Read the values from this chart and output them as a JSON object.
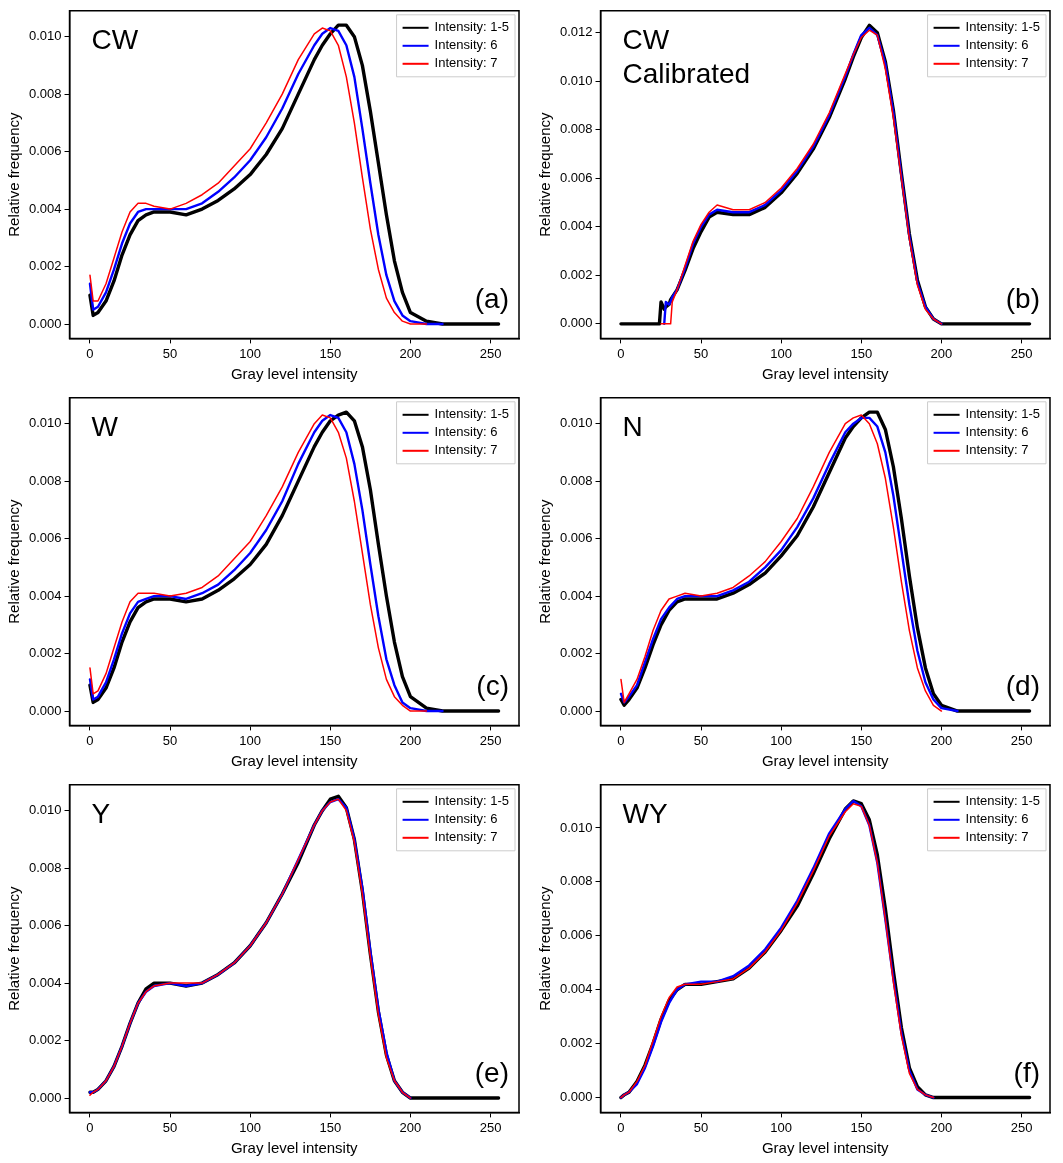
{
  "chart_data": [
    {
      "type": "line",
      "xlabel": "Gray level intensity",
      "ylabel": "Relative frequency",
      "annotations": [
        "CW",
        "(a)"
      ],
      "legend": "top right",
      "xlim": [
        -12.75,
        267.75
      ],
      "ylim": [
        -0.0005,
        0.0109
      ],
      "xticks": [
        0,
        50,
        100,
        150,
        200,
        250
      ],
      "yticks": [
        {
          "value": 0,
          "label": "0.000"
        },
        {
          "value": 0.002,
          "label": "0.002"
        },
        {
          "value": 0.004,
          "label": "0.004"
        },
        {
          "value": 0.006,
          "label": "0.006"
        },
        {
          "value": 0.008,
          "label": "0.008"
        },
        {
          "value": 0.01,
          "label": "0.010"
        }
      ],
      "x": [
        0,
        2,
        5,
        10,
        15,
        20,
        25,
        30,
        35,
        40,
        50,
        60,
        70,
        80,
        90,
        100,
        110,
        120,
        130,
        140,
        145,
        150,
        155,
        160,
        165,
        170,
        175,
        180,
        185,
        190,
        195,
        200,
        210,
        220,
        230,
        255
      ],
      "series": [
        {
          "name": "Intensity: 1-5",
          "color": "#000000",
          "values": [
            0.001,
            0.0003,
            0.0004,
            0.0008,
            0.0015,
            0.0024,
            0.0031,
            0.0036,
            0.0038,
            0.0039,
            0.0039,
            0.0038,
            0.004,
            0.0043,
            0.0047,
            0.0052,
            0.0059,
            0.0068,
            0.008,
            0.0092,
            0.0097,
            0.0101,
            0.0104,
            0.0104,
            0.01,
            0.009,
            0.0074,
            0.0056,
            0.0038,
            0.0022,
            0.0011,
            0.0004,
            0.0001,
            0,
            0,
            0
          ]
        },
        {
          "name": "Intensity: 6",
          "color": "#0000ff",
          "values": [
            0.0014,
            0.0005,
            0.0006,
            0.0011,
            0.0019,
            0.0028,
            0.0035,
            0.0039,
            0.004,
            0.004,
            0.004,
            0.004,
            0.0042,
            0.0046,
            0.0051,
            0.0057,
            0.0065,
            0.0075,
            0.0087,
            0.0097,
            0.0101,
            0.0103,
            0.0102,
            0.0097,
            0.0086,
            0.0068,
            0.0049,
            0.0031,
            0.0017,
            0.0008,
            0.0003,
            0.0001,
            0,
            0,
            null,
            null
          ]
        },
        {
          "name": "Intensity: 7",
          "color": "#ff0000",
          "values": [
            0.0017,
            0.0008,
            0.0008,
            0.0014,
            0.0023,
            0.0032,
            0.0039,
            0.0042,
            0.0042,
            0.0041,
            0.004,
            0.0042,
            0.0045,
            0.0049,
            0.0055,
            0.0061,
            0.007,
            0.008,
            0.0092,
            0.0101,
            0.0103,
            0.0102,
            0.0097,
            0.0086,
            0.007,
            0.0051,
            0.0033,
            0.0019,
            0.0009,
            0.0004,
            0.0001,
            0,
            0,
            null,
            null,
            null
          ]
        }
      ]
    },
    {
      "type": "line",
      "xlabel": "Gray level intensity",
      "ylabel": "Relative frequency",
      "annotations": [
        "CW Calibrated",
        "(b)"
      ],
      "legend": "top right",
      "xlim": [
        -12.75,
        267.75
      ],
      "ylim": [
        -0.0006,
        0.0129
      ],
      "xticks": [
        0,
        50,
        100,
        150,
        200,
        250
      ],
      "yticks": [
        {
          "value": 0,
          "label": "0.000"
        },
        {
          "value": 0.002,
          "label": "0.002"
        },
        {
          "value": 0.004,
          "label": "0.004"
        },
        {
          "value": 0.006,
          "label": "0.006"
        },
        {
          "value": 0.008,
          "label": "0.008"
        },
        {
          "value": 0.01,
          "label": "0.010"
        },
        {
          "value": 0.012,
          "label": "0.012"
        }
      ],
      "x": [
        0,
        10,
        20,
        24,
        25,
        27,
        28,
        30,
        31,
        32,
        35,
        40,
        45,
        50,
        55,
        60,
        70,
        80,
        90,
        100,
        110,
        120,
        130,
        140,
        145,
        150,
        155,
        160,
        165,
        170,
        175,
        180,
        185,
        190,
        195,
        200,
        210,
        230,
        255
      ],
      "series": [
        {
          "name": "Intensity: 1-5",
          "color": "#000000",
          "values": [
            0,
            0,
            0,
            0,
            0.0009,
            0.0006,
            0.0007,
            0.0008,
            0.001,
            0.0011,
            0.0014,
            0.0022,
            0.0031,
            0.0038,
            0.0044,
            0.0046,
            0.0045,
            0.0045,
            0.0048,
            0.0054,
            0.0062,
            0.0072,
            0.0085,
            0.0101,
            0.011,
            0.0118,
            0.0123,
            0.012,
            0.0108,
            0.0088,
            0.0062,
            0.0037,
            0.0018,
            0.0007,
            0.0002,
            0,
            0,
            0,
            0
          ]
        },
        {
          "name": "Intensity: 6",
          "color": "#0000ff",
          "values": [
            null,
            null,
            null,
            null,
            null,
            0,
            0.0009,
            0.0008,
            0.0009,
            0.0011,
            0.0014,
            0.0023,
            0.0033,
            0.004,
            0.0045,
            0.0047,
            0.0046,
            0.0046,
            0.0049,
            0.0055,
            0.0063,
            0.0073,
            0.0086,
            0.0102,
            0.0111,
            0.0119,
            0.0122,
            0.0119,
            0.0107,
            0.0087,
            0.0061,
            0.0036,
            0.0017,
            0.0007,
            0.0002,
            0,
            null,
            null,
            null
          ]
        },
        {
          "name": "Intensity: 7",
          "color": "#ff0000",
          "values": [
            null,
            null,
            null,
            null,
            0,
            0,
            0,
            0,
            0,
            0.0009,
            0.0014,
            0.0024,
            0.0034,
            0.0041,
            0.0046,
            0.0049,
            0.0047,
            0.0047,
            0.005,
            0.0056,
            0.0064,
            0.0074,
            0.0087,
            0.0103,
            0.0111,
            0.0118,
            0.0121,
            0.0119,
            0.0105,
            0.0085,
            0.006,
            0.0035,
            0.0016,
            0.0006,
            0.0002,
            0,
            null,
            null,
            null
          ]
        }
      ]
    },
    {
      "type": "line",
      "xlabel": "Gray level intensity",
      "ylabel": "Relative frequency",
      "annotations": [
        "W",
        "(c)"
      ],
      "legend": "top right",
      "xlim": [
        -12.75,
        267.75
      ],
      "ylim": [
        -0.0005,
        0.0109
      ],
      "xticks": [
        0,
        50,
        100,
        150,
        200,
        250
      ],
      "yticks": [
        {
          "value": 0,
          "label": "0.000"
        },
        {
          "value": 0.002,
          "label": "0.002"
        },
        {
          "value": 0.004,
          "label": "0.004"
        },
        {
          "value": 0.006,
          "label": "0.006"
        },
        {
          "value": 0.008,
          "label": "0.008"
        },
        {
          "value": 0.01,
          "label": "0.010"
        }
      ],
      "x": [
        0,
        2,
        5,
        10,
        15,
        20,
        25,
        30,
        35,
        40,
        50,
        60,
        70,
        80,
        90,
        100,
        110,
        120,
        130,
        140,
        145,
        150,
        155,
        160,
        165,
        170,
        175,
        180,
        185,
        190,
        195,
        200,
        210,
        220,
        230,
        255
      ],
      "series": [
        {
          "name": "Intensity: 1-5",
          "color": "#000000",
          "values": [
            0.0009,
            0.0003,
            0.0004,
            0.0008,
            0.0015,
            0.0024,
            0.0031,
            0.0036,
            0.0038,
            0.0039,
            0.0039,
            0.0038,
            0.0039,
            0.0042,
            0.0046,
            0.0051,
            0.0058,
            0.0068,
            0.008,
            0.0092,
            0.0097,
            0.0101,
            0.0103,
            0.0104,
            0.0101,
            0.0092,
            0.0077,
            0.0058,
            0.004,
            0.0024,
            0.0012,
            0.0005,
            0.0001,
            0,
            0,
            0
          ]
        },
        {
          "name": "Intensity: 6",
          "color": "#0000ff",
          "values": [
            0.0011,
            0.0004,
            0.0005,
            0.001,
            0.0018,
            0.0027,
            0.0034,
            0.0038,
            0.0039,
            0.004,
            0.004,
            0.0039,
            0.0041,
            0.0044,
            0.0049,
            0.0055,
            0.0063,
            0.0073,
            0.0086,
            0.0097,
            0.0101,
            0.0103,
            0.0102,
            0.0097,
            0.0086,
            0.007,
            0.0051,
            0.0033,
            0.0018,
            0.0009,
            0.0003,
            0.0001,
            0,
            0,
            null,
            null
          ]
        },
        {
          "name": "Intensity: 7",
          "color": "#ff0000",
          "values": [
            0.0015,
            0.0006,
            0.0007,
            0.0013,
            0.0022,
            0.0031,
            0.0038,
            0.0041,
            0.0041,
            0.0041,
            0.004,
            0.0041,
            0.0043,
            0.0047,
            0.0053,
            0.0059,
            0.0068,
            0.0078,
            0.009,
            0.01,
            0.0103,
            0.0102,
            0.0097,
            0.0088,
            0.0073,
            0.0055,
            0.0037,
            0.0022,
            0.0011,
            0.0005,
            0.0002,
            0,
            0,
            null,
            null,
            null
          ]
        }
      ]
    },
    {
      "type": "line",
      "xlabel": "Gray level intensity",
      "ylabel": "Relative frequency",
      "annotations": [
        "N",
        "(d)"
      ],
      "legend": "top right",
      "xlim": [
        -12.75,
        267.75
      ],
      "ylim": [
        -0.0005,
        0.0109
      ],
      "xticks": [
        0,
        50,
        100,
        150,
        200,
        250
      ],
      "yticks": [
        {
          "value": 0,
          "label": "0.000"
        },
        {
          "value": 0.002,
          "label": "0.002"
        },
        {
          "value": 0.004,
          "label": "0.004"
        },
        {
          "value": 0.006,
          "label": "0.006"
        },
        {
          "value": 0.008,
          "label": "0.008"
        },
        {
          "value": 0.01,
          "label": "0.010"
        }
      ],
      "x": [
        0,
        2,
        5,
        10,
        15,
        20,
        25,
        30,
        35,
        40,
        50,
        60,
        70,
        80,
        90,
        100,
        110,
        120,
        130,
        140,
        145,
        150,
        155,
        160,
        165,
        170,
        175,
        180,
        185,
        190,
        195,
        200,
        210,
        220,
        230,
        255
      ],
      "series": [
        {
          "name": "Intensity: 1-5",
          "color": "#000000",
          "values": [
            0.0004,
            0.0002,
            0.0004,
            0.0008,
            0.0015,
            0.0023,
            0.003,
            0.0035,
            0.0038,
            0.0039,
            0.0039,
            0.0039,
            0.0041,
            0.0044,
            0.0048,
            0.0054,
            0.0061,
            0.0071,
            0.0083,
            0.0095,
            0.0099,
            0.0102,
            0.0104,
            0.0104,
            0.0098,
            0.0085,
            0.0067,
            0.0047,
            0.0029,
            0.0015,
            0.0006,
            0.0002,
            0,
            0,
            0,
            0
          ]
        },
        {
          "name": "Intensity: 6",
          "color": "#0000ff",
          "values": [
            0.0006,
            0.0003,
            0.0005,
            0.0009,
            0.0017,
            0.0025,
            0.0032,
            0.0036,
            0.0039,
            0.004,
            0.004,
            0.004,
            0.0042,
            0.0045,
            0.005,
            0.0056,
            0.0064,
            0.0074,
            0.0086,
            0.0097,
            0.01,
            0.0102,
            0.0102,
            0.0099,
            0.009,
            0.0075,
            0.0056,
            0.0037,
            0.0021,
            0.001,
            0.0004,
            0.0001,
            0,
            null,
            null,
            null
          ]
        },
        {
          "name": "Intensity: 7",
          "color": "#ff0000",
          "values": [
            0.0011,
            0.0003,
            0.0006,
            0.0011,
            0.0019,
            0.0028,
            0.0035,
            0.0039,
            0.004,
            0.0041,
            0.004,
            0.0041,
            0.0043,
            0.0047,
            0.0052,
            0.0059,
            0.0067,
            0.0078,
            0.009,
            0.01,
            0.0102,
            0.0103,
            0.01,
            0.0093,
            0.0081,
            0.0064,
            0.0045,
            0.0028,
            0.0015,
            0.0007,
            0.0002,
            0,
            null,
            null,
            null,
            null
          ]
        }
      ]
    },
    {
      "type": "line",
      "xlabel": "Gray level intensity",
      "ylabel": "Relative frequency",
      "annotations": [
        "Y",
        "(e)"
      ],
      "legend": "top right",
      "xlim": [
        -12.75,
        267.75
      ],
      "ylim": [
        -0.0005,
        0.0109
      ],
      "xticks": [
        0,
        50,
        100,
        150,
        200,
        250
      ],
      "yticks": [
        {
          "value": 0,
          "label": "0.000"
        },
        {
          "value": 0.002,
          "label": "0.002"
        },
        {
          "value": 0.004,
          "label": "0.004"
        },
        {
          "value": 0.006,
          "label": "0.006"
        },
        {
          "value": 0.008,
          "label": "0.008"
        },
        {
          "value": 0.01,
          "label": "0.010"
        }
      ],
      "x": [
        0,
        2,
        5,
        10,
        15,
        20,
        25,
        30,
        35,
        40,
        50,
        60,
        70,
        80,
        90,
        100,
        110,
        120,
        130,
        140,
        145,
        150,
        155,
        160,
        165,
        170,
        175,
        180,
        185,
        190,
        195,
        200,
        210,
        220,
        230,
        255
      ],
      "series": [
        {
          "name": "Intensity: 1-5",
          "color": "#000000",
          "values": [
            0.0002,
            0.0002,
            0.0003,
            0.0006,
            0.0011,
            0.0018,
            0.0026,
            0.0033,
            0.0038,
            0.004,
            0.004,
            0.0039,
            0.004,
            0.0043,
            0.0047,
            0.0053,
            0.0061,
            0.0071,
            0.0082,
            0.0095,
            0.01,
            0.0104,
            0.0105,
            0.0101,
            0.009,
            0.0072,
            0.005,
            0.003,
            0.0015,
            0.0006,
            0.0002,
            0,
            0,
            0,
            0,
            0
          ]
        },
        {
          "name": "Intensity: 6",
          "color": "#0000ff",
          "values": [
            0.0002,
            0.0002,
            0.0003,
            0.0006,
            0.0011,
            0.0018,
            0.0026,
            0.0033,
            0.0037,
            0.0039,
            0.004,
            0.0039,
            0.004,
            0.0043,
            0.0047,
            0.0053,
            0.0061,
            0.0071,
            0.0083,
            0.0095,
            0.01,
            0.0103,
            0.0104,
            0.0101,
            0.009,
            0.0073,
            0.0051,
            0.0031,
            0.0016,
            0.0006,
            0.0002,
            0,
            null,
            null,
            null,
            null
          ]
        },
        {
          "name": "Intensity: 7",
          "color": "#ff0000",
          "values": [
            0.0001,
            0.0002,
            0.0003,
            0.0006,
            0.0011,
            0.0018,
            0.0026,
            0.0033,
            0.0037,
            0.0039,
            0.004,
            0.004,
            0.004,
            0.0043,
            0.0047,
            0.0053,
            0.0061,
            0.0071,
            0.0083,
            0.0095,
            0.01,
            0.0103,
            0.0104,
            0.01,
            0.0089,
            0.0071,
            0.0049,
            0.0029,
            0.0014,
            0.0006,
            0.0002,
            0,
            null,
            null,
            null,
            null
          ]
        }
      ]
    },
    {
      "type": "line",
      "xlabel": "Gray level intensity",
      "ylabel": "Relative frequency",
      "annotations": [
        "WY",
        "(f)"
      ],
      "legend": "top right",
      "xlim": [
        -12.75,
        267.75
      ],
      "ylim": [
        -0.00055,
        0.0116
      ],
      "xticks": [
        0,
        50,
        100,
        150,
        200,
        250
      ],
      "yticks": [
        {
          "value": 0,
          "label": "0.000"
        },
        {
          "value": 0.002,
          "label": "0.002"
        },
        {
          "value": 0.004,
          "label": "0.004"
        },
        {
          "value": 0.006,
          "label": "0.006"
        },
        {
          "value": 0.008,
          "label": "0.008"
        },
        {
          "value": 0.01,
          "label": "0.010"
        }
      ],
      "x": [
        0,
        2,
        5,
        10,
        15,
        20,
        25,
        30,
        35,
        40,
        50,
        60,
        70,
        80,
        90,
        100,
        110,
        120,
        130,
        140,
        145,
        150,
        155,
        160,
        165,
        170,
        175,
        180,
        185,
        190,
        195,
        200,
        210,
        220,
        230,
        255
      ],
      "series": [
        {
          "name": "Intensity: 1-5",
          "color": "#000000",
          "values": [
            0,
            0.0001,
            0.0002,
            0.0006,
            0.0012,
            0.002,
            0.0029,
            0.0036,
            0.004,
            0.0042,
            0.0042,
            0.0043,
            0.0044,
            0.0048,
            0.0054,
            0.0062,
            0.0071,
            0.0083,
            0.0096,
            0.0107,
            0.011,
            0.0109,
            0.0103,
            0.009,
            0.007,
            0.0047,
            0.0026,
            0.0011,
            0.0004,
            0.0001,
            0,
            0,
            0,
            0,
            0,
            0
          ]
        },
        {
          "name": "Intensity: 6",
          "color": "#0000ff",
          "values": [
            0,
            0.0001,
            0.0002,
            0.0005,
            0.0011,
            0.0019,
            0.0028,
            0.0035,
            0.004,
            0.0042,
            0.0043,
            0.0043,
            0.0045,
            0.0049,
            0.0055,
            0.0063,
            0.0073,
            0.0085,
            0.0098,
            0.0107,
            0.011,
            0.0108,
            0.0101,
            0.0087,
            0.0066,
            0.0044,
            0.0024,
            0.001,
            0.0003,
            0.0001,
            0,
            null,
            null,
            null,
            null,
            null
          ]
        },
        {
          "name": "Intensity: 7",
          "color": "#ff0000",
          "values": [
            0,
            0.0001,
            0.0002,
            0.0006,
            0.0012,
            0.0021,
            0.003,
            0.0037,
            0.0041,
            0.0042,
            0.0042,
            0.0043,
            0.0044,
            0.0048,
            0.0054,
            0.0062,
            0.0072,
            0.0084,
            0.0097,
            0.0106,
            0.0109,
            0.0108,
            0.0101,
            0.0087,
            0.0066,
            0.0043,
            0.0023,
            0.0009,
            0.0003,
            0.0001,
            0,
            null,
            null,
            null,
            null,
            null
          ]
        }
      ]
    }
  ]
}
